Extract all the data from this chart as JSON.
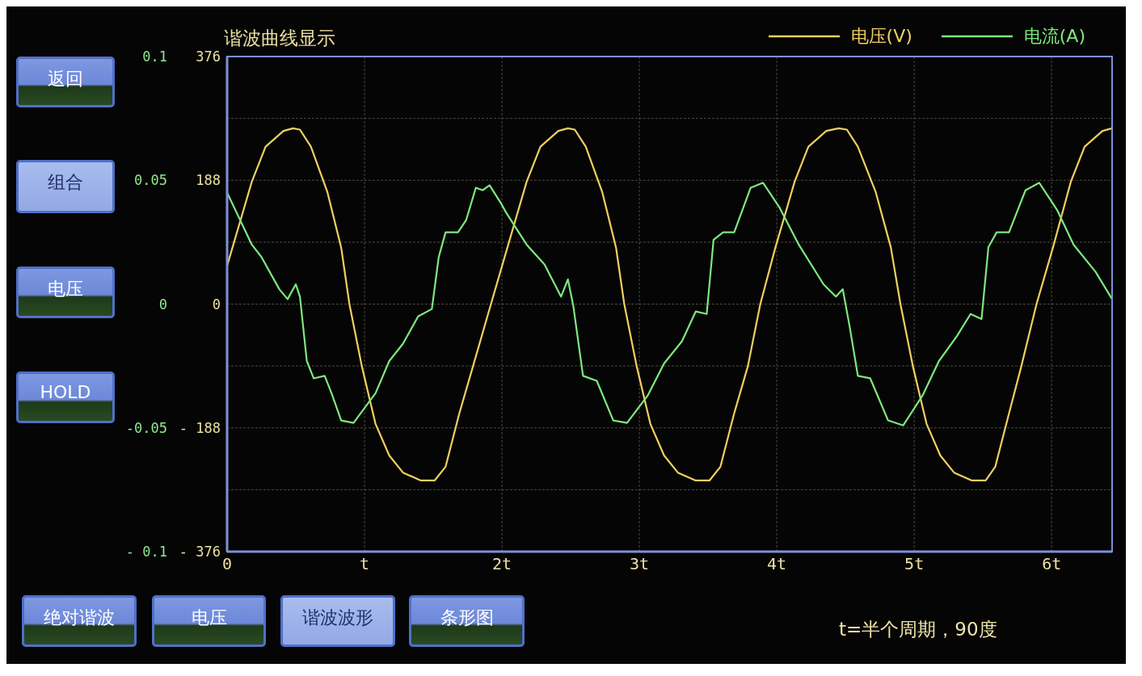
{
  "chart_data": {
    "type": "line",
    "title": "谐波曲线显示",
    "xlim": [
      0,
      6.44
    ],
    "xticks": [
      0,
      {
        "value": 1,
        "label": "t"
      },
      {
        "value": 2,
        "label": "2t"
      },
      {
        "value": 3,
        "label": "3t"
      },
      {
        "value": 4,
        "label": "4t"
      },
      {
        "value": 5,
        "label": "5t"
      },
      {
        "value": 6,
        "label": "6t"
      }
    ],
    "ylim": [
      -376,
      376
    ],
    "yticks": [
      376,
      {
        "value": 282,
        "label": null
      },
      188,
      {
        "value": 94,
        "label": null
      },
      0,
      {
        "value": -94,
        "label": null
      },
      {
        "value": -188,
        "label": "- 188"
      },
      {
        "value": -282,
        "label": null
      },
      {
        "value": -376,
        "label": "- 376"
      }
    ],
    "y2lim": [
      -0.1,
      0.1
    ],
    "y2ticks": [
      0.1,
      0.05,
      0,
      -0.05,
      {
        "value": -0.1,
        "label": "- 0.1"
      }
    ],
    "grid": true,
    "legend": "top right",
    "marker": "none",
    "line_style": "solid",
    "series": [
      {
        "name": "电压(V)",
        "color": "#f0d060",
        "x": [
          0,
          0.18,
          0.28,
          0.41,
          0.48,
          0.53,
          0.61,
          0.73,
          0.83,
          0.89,
          0.98,
          1.08,
          1.18,
          1.28,
          1.41,
          1.51,
          1.59,
          1.69,
          1.79,
          1.92,
          2.04,
          2.18,
          2.28,
          2.41,
          2.48,
          2.53,
          2.61,
          2.73,
          2.83,
          2.89,
          2.98,
          3.08,
          3.18,
          3.28,
          3.41,
          3.51,
          3.59,
          3.69,
          3.79,
          3.88,
          3.99,
          4.13,
          4.23,
          4.36,
          4.45,
          4.51,
          4.59,
          4.72,
          4.83,
          4.9,
          4.99,
          5.09,
          5.19,
          5.29,
          5.42,
          5.52,
          5.59,
          5.69,
          5.78,
          5.89,
          6.01,
          6.14,
          6.24,
          6.37,
          6.44
        ],
        "values": [
          58,
          186,
          239,
          263,
          267,
          265,
          239,
          170,
          86,
          0,
          -94,
          -182,
          -230,
          -256,
          -268,
          -268,
          -247,
          -166,
          -94,
          0,
          86,
          186,
          239,
          263,
          267,
          265,
          239,
          170,
          86,
          0,
          -94,
          -182,
          -230,
          -256,
          -268,
          -268,
          -247,
          -166,
          -94,
          0,
          86,
          186,
          239,
          263,
          267,
          265,
          239,
          170,
          86,
          0,
          -94,
          -182,
          -230,
          -256,
          -268,
          -268,
          -247,
          -166,
          -94,
          0,
          86,
          186,
          239,
          263,
          267
        ]
      },
      {
        "name": "电流(A)",
        "color": "#7ee87e",
        "axis": "y2",
        "x": [
          0,
          0.18,
          0.25,
          0.38,
          0.44,
          0.5,
          0.53,
          0.58,
          0.63,
          0.71,
          0.76,
          0.83,
          0.92,
          1.08,
          1.18,
          1.28,
          1.39,
          1.49,
          1.54,
          1.59,
          1.68,
          1.74,
          1.81,
          1.86,
          1.91,
          1.99,
          2.03,
          2.18,
          2.31,
          2.43,
          2.48,
          2.52,
          2.59,
          2.69,
          2.81,
          2.91,
          3.06,
          3.18,
          3.31,
          3.41,
          3.49,
          3.54,
          3.61,
          3.69,
          3.81,
          3.9,
          4.02,
          4.16,
          4.34,
          4.43,
          4.48,
          4.53,
          4.59,
          4.68,
          4.81,
          4.92,
          5.06,
          5.18,
          5.31,
          5.41,
          5.49,
          5.54,
          5.6,
          5.69,
          5.81,
          5.91,
          6.04,
          6.16,
          6.32,
          6.44
        ],
        "values": [
          0.045,
          0.024,
          0.019,
          0.006,
          0.002,
          0.008,
          0.003,
          -0.023,
          -0.03,
          -0.029,
          -0.036,
          -0.047,
          -0.048,
          -0.036,
          -0.023,
          -0.016,
          -0.005,
          -0.002,
          0.019,
          0.029,
          0.029,
          0.034,
          0.047,
          0.046,
          0.048,
          0.041,
          0.037,
          0.024,
          0.016,
          0.003,
          0.01,
          -0.001,
          -0.029,
          -0.031,
          -0.047,
          -0.048,
          -0.037,
          -0.024,
          -0.015,
          -0.003,
          -0.004,
          0.026,
          0.029,
          0.029,
          0.047,
          0.049,
          0.039,
          0.024,
          0.008,
          0.003,
          0.006,
          -0.009,
          -0.029,
          -0.03,
          -0.047,
          -0.049,
          -0.037,
          -0.023,
          -0.013,
          -0.004,
          -0.006,
          0.023,
          0.029,
          0.029,
          0.046,
          0.049,
          0.038,
          0.024,
          0.013,
          0.002
        ]
      }
    ],
    "annotations": [
      "返回",
      "组合",
      "电压",
      "HOLD",
      "绝对谐波",
      "电压",
      "谐波波形",
      "条形图",
      "t=半个周期，90度"
    ]
  }
}
